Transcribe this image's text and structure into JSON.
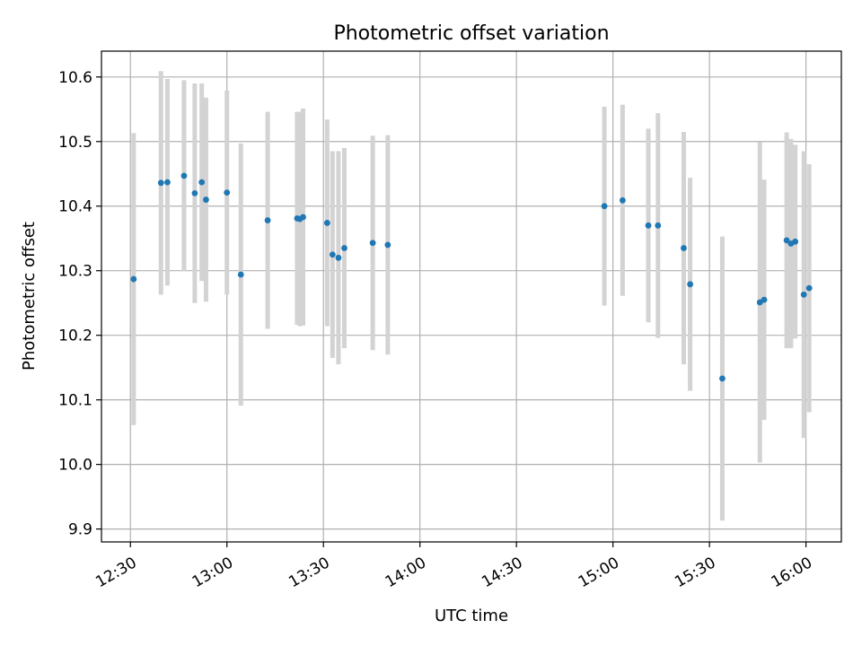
{
  "chart_data": {
    "type": "scatter",
    "title": "Photometric offset variation",
    "xlabel": "UTC time",
    "ylabel": "Photometric offset",
    "x_axis_type": "time",
    "xlim": [
      "12:21",
      "16:11"
    ],
    "ylim": [
      9.88,
      10.64
    ],
    "x_ticks": [
      "12:30",
      "13:00",
      "13:30",
      "14:00",
      "14:30",
      "15:00",
      "15:30",
      "16:00"
    ],
    "y_ticks": [
      9.9,
      10.0,
      10.1,
      10.2,
      10.3,
      10.4,
      10.5,
      10.6
    ],
    "grid": true,
    "legend": "none",
    "colors": {
      "marker": "#1f77b4",
      "errorbar": "#d3d3d3",
      "grid": "#b0b0b0"
    },
    "series": [
      {
        "points": [
          {
            "x": "12:31:00",
            "y": 10.287,
            "yerr": 0.226
          },
          {
            "x": "12:39:30",
            "y": 10.436,
            "yerr": 0.173
          },
          {
            "x": "12:41:30",
            "y": 10.437,
            "yerr": 0.16
          },
          {
            "x": "12:46:40",
            "y": 10.447,
            "yerr": 0.148
          },
          {
            "x": "12:50:00",
            "y": 10.42,
            "yerr": 0.17
          },
          {
            "x": "12:52:10",
            "y": 10.437,
            "yerr": 0.153
          },
          {
            "x": "12:53:30",
            "y": 10.41,
            "yerr": 0.158
          },
          {
            "x": "13:00:00",
            "y": 10.421,
            "yerr": 0.158
          },
          {
            "x": "13:04:20",
            "y": 10.294,
            "yerr": 0.203
          },
          {
            "x": "13:12:40",
            "y": 10.378,
            "yerr": 0.168
          },
          {
            "x": "13:21:50",
            "y": 10.381,
            "yerr": 0.165
          },
          {
            "x": "13:22:40",
            "y": 10.38,
            "yerr": 0.166
          },
          {
            "x": "13:23:40",
            "y": 10.383,
            "yerr": 0.168
          },
          {
            "x": "13:31:10",
            "y": 10.374,
            "yerr": 0.16
          },
          {
            "x": "13:32:50",
            "y": 10.325,
            "yerr": 0.16
          },
          {
            "x": "13:34:40",
            "y": 10.32,
            "yerr": 0.165
          },
          {
            "x": "13:36:30",
            "y": 10.335,
            "yerr": 0.155
          },
          {
            "x": "13:45:20",
            "y": 10.343,
            "yerr": 0.166
          },
          {
            "x": "13:50:00",
            "y": 10.34,
            "yerr": 0.17
          },
          {
            "x": "14:57:20",
            "y": 10.4,
            "yerr": 0.154
          },
          {
            "x": "15:03:00",
            "y": 10.409,
            "yerr": 0.148
          },
          {
            "x": "15:11:00",
            "y": 10.37,
            "yerr": 0.15
          },
          {
            "x": "15:14:00",
            "y": 10.37,
            "yerr": 0.174
          },
          {
            "x": "15:22:00",
            "y": 10.335,
            "yerr": 0.18
          },
          {
            "x": "15:24:00",
            "y": 10.279,
            "yerr": 0.165
          },
          {
            "x": "15:34:00",
            "y": 10.133,
            "yerr": 0.22
          },
          {
            "x": "15:45:40",
            "y": 10.251,
            "yerr": 0.248
          },
          {
            "x": "15:47:00",
            "y": 10.255,
            "yerr": 0.186
          },
          {
            "x": "15:54:00",
            "y": 10.347,
            "yerr": 0.167
          },
          {
            "x": "15:55:20",
            "y": 10.342,
            "yerr": 0.162
          },
          {
            "x": "15:56:40",
            "y": 10.345,
            "yerr": 0.15
          },
          {
            "x": "15:59:20",
            "y": 10.263,
            "yerr": 0.222
          },
          {
            "x": "16:01:00",
            "y": 10.273,
            "yerr": 0.192
          }
        ]
      }
    ]
  }
}
